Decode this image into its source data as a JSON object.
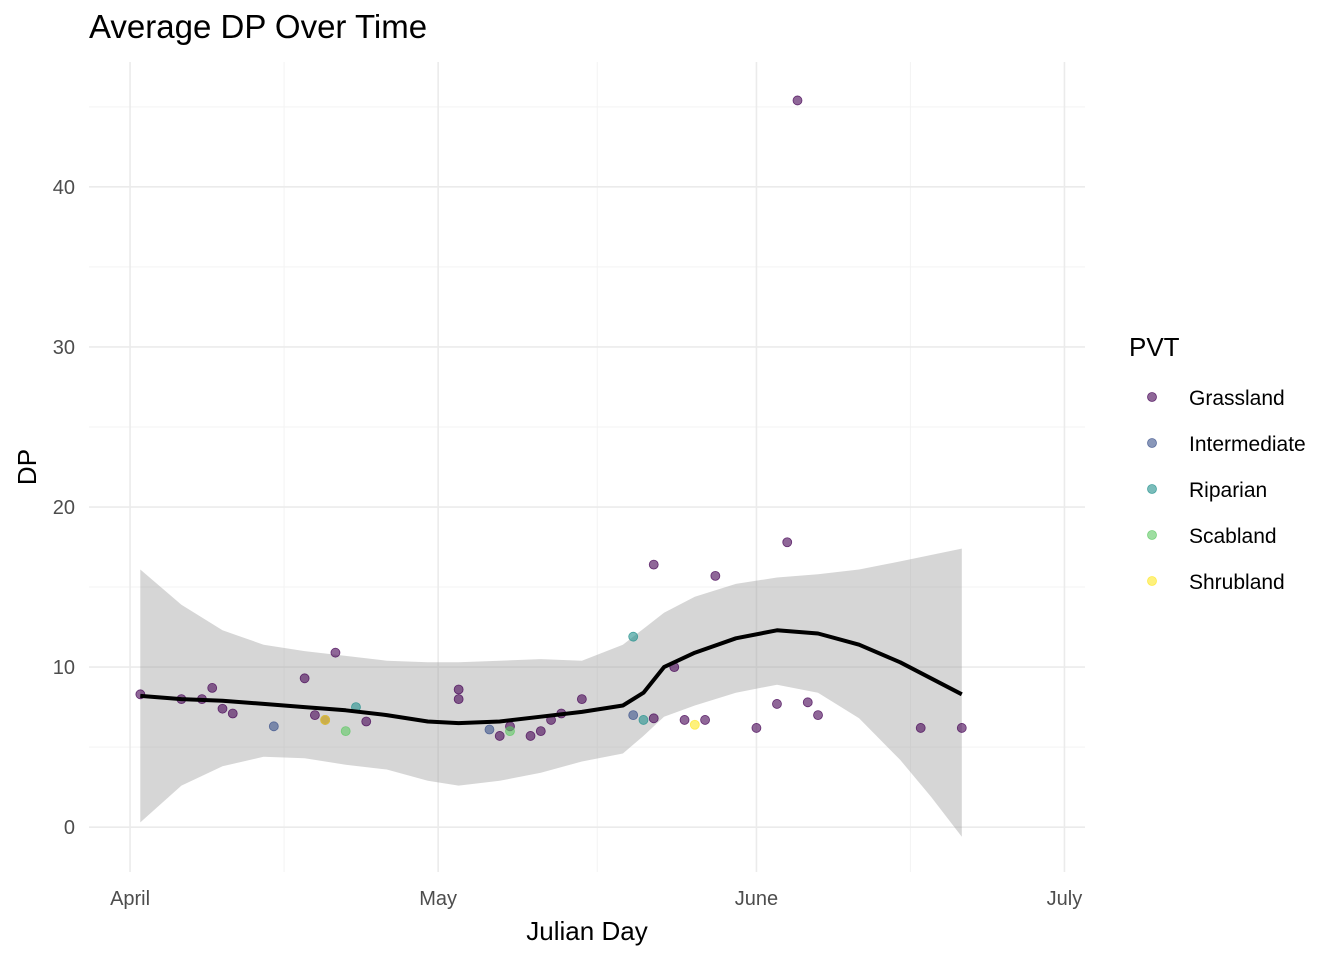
{
  "chart_data": {
    "type": "scatter",
    "title": "Average DP Over Time",
    "xlabel": "Julian Day",
    "ylabel": "DP",
    "x_ticks": [
      {
        "label": "April",
        "date": "2024-04-01"
      },
      {
        "label": "May",
        "date": "2024-05-01"
      },
      {
        "label": "June",
        "date": "2024-06-01"
      },
      {
        "label": "July",
        "date": "2024-07-01"
      }
    ],
    "xlim": [
      "2024-03-28",
      "2024-07-03"
    ],
    "y_ticks": [
      0,
      10,
      20,
      30,
      40
    ],
    "ylim": [
      -2.8,
      47.8
    ],
    "grid": true,
    "legend": {
      "title": "PVT",
      "position": "right"
    },
    "series": [
      {
        "name": "Grassland",
        "color": "#440154",
        "points": [
          {
            "x": "2024-04-02",
            "y": 8.3
          },
          {
            "x": "2024-04-06",
            "y": 8.0
          },
          {
            "x": "2024-04-08",
            "y": 8.0
          },
          {
            "x": "2024-04-09",
            "y": 8.7
          },
          {
            "x": "2024-04-10",
            "y": 7.4
          },
          {
            "x": "2024-04-11",
            "y": 7.1
          },
          {
            "x": "2024-04-18",
            "y": 9.3
          },
          {
            "x": "2024-04-19",
            "y": 7.0
          },
          {
            "x": "2024-04-20",
            "y": 6.7
          },
          {
            "x": "2024-04-21",
            "y": 10.9
          },
          {
            "x": "2024-04-24",
            "y": 6.6
          },
          {
            "x": "2024-05-03",
            "y": 8.6
          },
          {
            "x": "2024-05-03",
            "y": 8.0
          },
          {
            "x": "2024-05-07",
            "y": 5.7
          },
          {
            "x": "2024-05-08",
            "y": 6.3
          },
          {
            "x": "2024-05-10",
            "y": 5.7
          },
          {
            "x": "2024-05-11",
            "y": 6.0
          },
          {
            "x": "2024-05-12",
            "y": 6.7
          },
          {
            "x": "2024-05-13",
            "y": 7.1
          },
          {
            "x": "2024-05-15",
            "y": 8.0
          },
          {
            "x": "2024-05-22",
            "y": 16.4
          },
          {
            "x": "2024-05-22",
            "y": 6.8
          },
          {
            "x": "2024-05-24",
            "y": 10.0
          },
          {
            "x": "2024-05-25",
            "y": 6.7
          },
          {
            "x": "2024-05-27",
            "y": 6.7
          },
          {
            "x": "2024-05-28",
            "y": 15.7
          },
          {
            "x": "2024-06-01",
            "y": 6.2
          },
          {
            "x": "2024-06-03",
            "y": 7.7
          },
          {
            "x": "2024-06-04",
            "y": 17.8
          },
          {
            "x": "2024-06-05",
            "y": 45.4
          },
          {
            "x": "2024-06-06",
            "y": 7.8
          },
          {
            "x": "2024-06-07",
            "y": 7.0
          },
          {
            "x": "2024-06-17",
            "y": 6.2
          },
          {
            "x": "2024-06-21",
            "y": 6.2
          }
        ]
      },
      {
        "name": "Intermediate",
        "color": "#3B528B",
        "points": [
          {
            "x": "2024-04-15",
            "y": 6.3
          },
          {
            "x": "2024-05-06",
            "y": 6.1
          },
          {
            "x": "2024-05-20",
            "y": 7.0
          }
        ]
      },
      {
        "name": "Riparian",
        "color": "#21908C",
        "points": [
          {
            "x": "2024-04-23",
            "y": 7.5
          },
          {
            "x": "2024-05-20",
            "y": 11.9
          },
          {
            "x": "2024-05-21",
            "y": 6.7
          }
        ]
      },
      {
        "name": "Scabland",
        "color": "#5DC863",
        "points": [
          {
            "x": "2024-04-22",
            "y": 6.0
          },
          {
            "x": "2024-05-08",
            "y": 6.0
          }
        ]
      },
      {
        "name": "Shrubland",
        "color": "#FDE725",
        "points": [
          {
            "x": "2024-05-26",
            "y": 6.4
          },
          {
            "x": "2024-04-20",
            "y": 6.7
          }
        ]
      }
    ],
    "smooth": {
      "color": "#000000",
      "band_color": "#999999",
      "points": [
        {
          "x": "2024-04-02",
          "y": 8.2,
          "lo": 0.3,
          "hi": 16.1
        },
        {
          "x": "2024-04-06",
          "y": 8.0,
          "lo": 2.6,
          "hi": 13.9
        },
        {
          "x": "2024-04-10",
          "y": 7.9,
          "lo": 3.8,
          "hi": 12.3
        },
        {
          "x": "2024-04-14",
          "y": 7.7,
          "lo": 4.4,
          "hi": 11.4
        },
        {
          "x": "2024-04-18",
          "y": 7.5,
          "lo": 4.3,
          "hi": 11.0
        },
        {
          "x": "2024-04-22",
          "y": 7.3,
          "lo": 3.9,
          "hi": 10.7
        },
        {
          "x": "2024-04-26",
          "y": 7.0,
          "lo": 3.6,
          "hi": 10.4
        },
        {
          "x": "2024-04-30",
          "y": 6.6,
          "lo": 2.9,
          "hi": 10.3
        },
        {
          "x": "2024-05-03",
          "y": 6.5,
          "lo": 2.6,
          "hi": 10.3
        },
        {
          "x": "2024-05-07",
          "y": 6.6,
          "lo": 2.9,
          "hi": 10.4
        },
        {
          "x": "2024-05-11",
          "y": 6.9,
          "lo": 3.4,
          "hi": 10.5
        },
        {
          "x": "2024-05-15",
          "y": 7.2,
          "lo": 4.1,
          "hi": 10.4
        },
        {
          "x": "2024-05-19",
          "y": 7.6,
          "lo": 4.6,
          "hi": 11.4
        },
        {
          "x": "2024-05-21",
          "y": 8.4,
          "lo": 5.7,
          "hi": 12.4
        },
        {
          "x": "2024-05-23",
          "y": 10.0,
          "lo": 6.9,
          "hi": 13.4
        },
        {
          "x": "2024-05-26",
          "y": 10.9,
          "lo": 7.6,
          "hi": 14.4
        },
        {
          "x": "2024-05-30",
          "y": 11.8,
          "lo": 8.4,
          "hi": 15.2
        },
        {
          "x": "2024-06-03",
          "y": 12.3,
          "lo": 8.9,
          "hi": 15.6
        },
        {
          "x": "2024-06-07",
          "y": 12.1,
          "lo": 8.4,
          "hi": 15.8
        },
        {
          "x": "2024-06-11",
          "y": 11.4,
          "lo": 6.8,
          "hi": 16.1
        },
        {
          "x": "2024-06-15",
          "y": 10.3,
          "lo": 4.2,
          "hi": 16.6
        },
        {
          "x": "2024-06-18",
          "y": 9.3,
          "lo": 1.9,
          "hi": 17.0
        },
        {
          "x": "2024-06-21",
          "y": 8.3,
          "lo": -0.6,
          "hi": 17.4
        }
      ]
    }
  }
}
